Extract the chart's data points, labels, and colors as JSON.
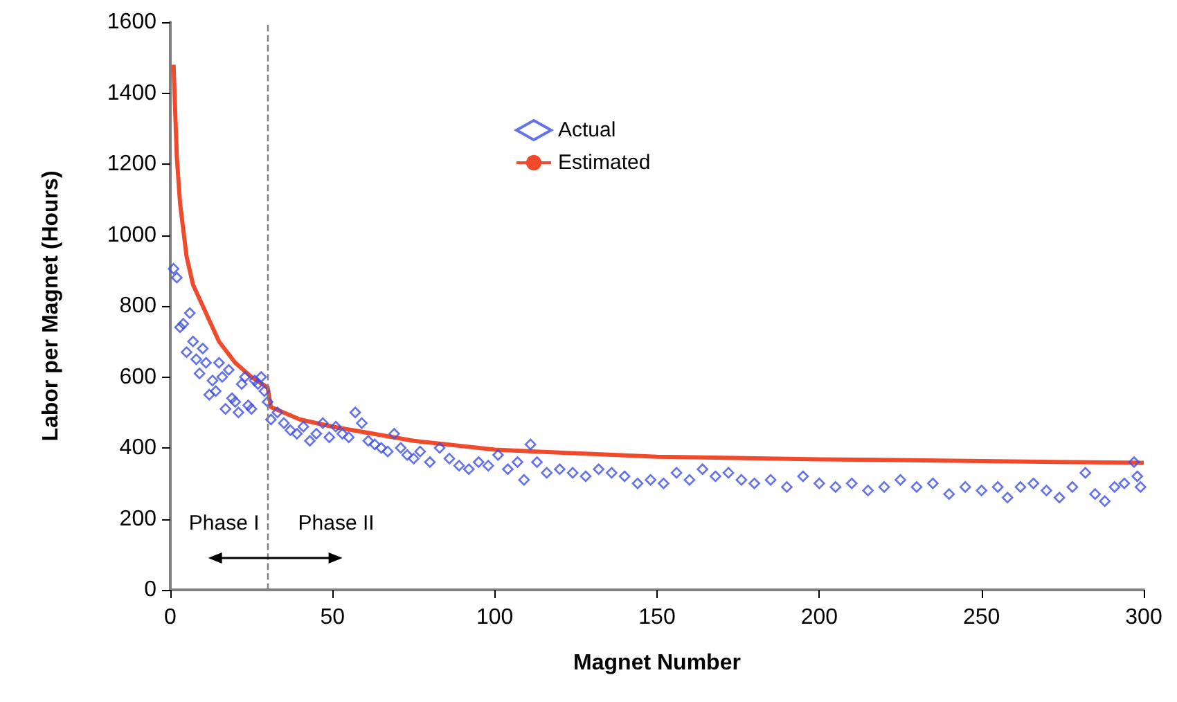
{
  "chart_data": {
    "type": "scatter",
    "xlabel": "Magnet Number",
    "ylabel": "Labor per Magnet (Hours)",
    "xlim": [
      0,
      300
    ],
    "xticks": [
      0,
      50,
      100,
      150,
      200,
      250,
      300
    ],
    "ylim": [
      0,
      1600
    ],
    "yticks": [
      0,
      200,
      400,
      600,
      800,
      1000,
      1200,
      1400,
      1600
    ],
    "grid": false,
    "legend": "top",
    "marker": "diamond",
    "series": [
      {
        "name": "Actual",
        "color": "#3c4fe6",
        "x": [
          1,
          2,
          3,
          4,
          5,
          6,
          7,
          8,
          9,
          10,
          11,
          12,
          13,
          14,
          15,
          16,
          17,
          18,
          19,
          20,
          21,
          22,
          23,
          24,
          25,
          26,
          27,
          28,
          29,
          30,
          31,
          33,
          35,
          37,
          39,
          41,
          43,
          45,
          47,
          49,
          51,
          53,
          55,
          57,
          59,
          61,
          63,
          65,
          67,
          69,
          71,
          73,
          75,
          77,
          80,
          83,
          86,
          89,
          92,
          95,
          98,
          101,
          104,
          107,
          109,
          111,
          113,
          116,
          120,
          124,
          128,
          132,
          136,
          140,
          144,
          148,
          152,
          156,
          160,
          164,
          168,
          172,
          176,
          180,
          185,
          190,
          195,
          200,
          205,
          210,
          215,
          220,
          225,
          230,
          235,
          240,
          245,
          250,
          255,
          258,
          262,
          266,
          270,
          274,
          278,
          282,
          285,
          288,
          291,
          294,
          297,
          298,
          299
        ],
        "values": [
          905,
          880,
          740,
          750,
          670,
          780,
          700,
          650,
          610,
          680,
          640,
          550,
          590,
          560,
          640,
          600,
          510,
          620,
          540,
          530,
          500,
          580,
          600,
          520,
          510,
          590,
          580,
          600,
          560,
          530,
          480,
          500,
          470,
          450,
          440,
          460,
          420,
          440,
          470,
          430,
          460,
          440,
          430,
          500,
          470,
          420,
          410,
          400,
          390,
          440,
          400,
          380,
          370,
          390,
          360,
          400,
          370,
          350,
          340,
          360,
          350,
          380,
          340,
          360,
          310,
          410,
          360,
          330,
          340,
          330,
          320,
          340,
          330,
          320,
          300,
          310,
          300,
          330,
          310,
          340,
          320,
          330,
          310,
          300,
          310,
          290,
          320,
          300,
          290,
          300,
          280,
          290,
          310,
          290,
          300,
          270,
          290,
          280,
          290,
          260,
          290,
          300,
          280,
          260,
          290,
          330,
          270,
          250,
          290,
          300,
          360,
          320,
          290
        ]
      },
      {
        "name": "Estimated",
        "type": "line",
        "color": "#f04a2c",
        "marker": "none",
        "x": [
          1,
          2,
          3,
          5,
          7,
          10,
          15,
          20,
          25,
          30,
          31,
          40,
          50,
          75,
          100,
          150,
          200,
          250,
          300
        ],
        "values": [
          1480,
          1220,
          1090,
          940,
          860,
          800,
          700,
          640,
          600,
          570,
          515,
          480,
          460,
          420,
          395,
          375,
          368,
          363,
          358
        ]
      }
    ],
    "ref_lines": [
      {
        "axis": "x",
        "value": 30,
        "color": "#808080",
        "line_style": "dashed"
      }
    ],
    "annotations": [
      "Phase I",
      "Phase II"
    ]
  }
}
